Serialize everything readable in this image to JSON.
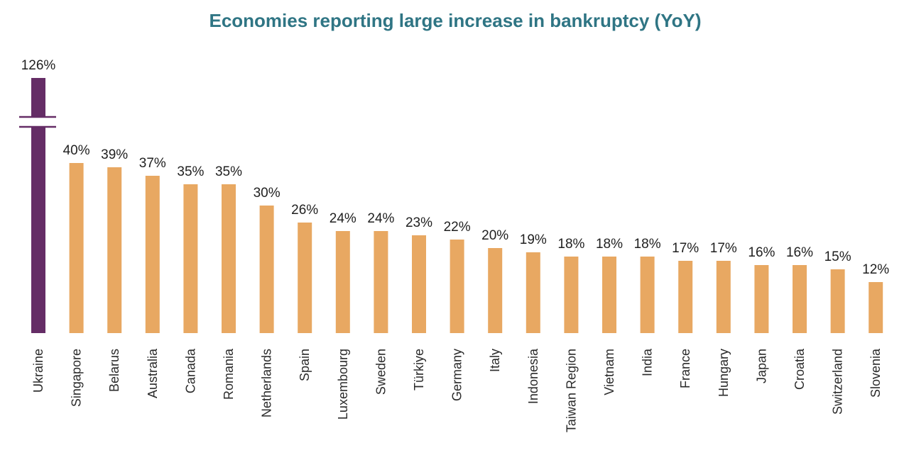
{
  "chart_data": {
    "type": "bar",
    "title": "Economies reporting large increase in bankruptcy (YoY)",
    "categories": [
      "Ukraine",
      "Singapore",
      "Belarus",
      "Australia",
      "Canada",
      "Romania",
      "Netherlands",
      "Spain",
      "Luxembourg",
      "Sweden",
      "Türkiye",
      "Germany",
      "Italy",
      "Indonesia",
      "Taiwan Region",
      "Vietnam",
      "India",
      "France",
      "Hungary",
      "Japan",
      "Croatia",
      "Switzerland",
      "Slovenia"
    ],
    "values": [
      126,
      40,
      39,
      37,
      35,
      35,
      30,
      26,
      24,
      24,
      23,
      22,
      20,
      19,
      18,
      18,
      18,
      17,
      17,
      16,
      16,
      15,
      12
    ],
    "labels": [
      "126%",
      "40%",
      "39%",
      "37%",
      "35%",
      "35%",
      "30%",
      "26%",
      "24%",
      "24%",
      "23%",
      "22%",
      "20%",
      "19%",
      "18%",
      "18%",
      "18%",
      "17%",
      "17%",
      "16%",
      "16%",
      "15%",
      "12%"
    ],
    "value_unit": "%",
    "broken_axis": true,
    "highlighted_category": "Ukraine",
    "colors": {
      "highlight": "#652d66",
      "default": "#e8a862",
      "title": "#2f7584",
      "break_line": "#652d66"
    }
  }
}
